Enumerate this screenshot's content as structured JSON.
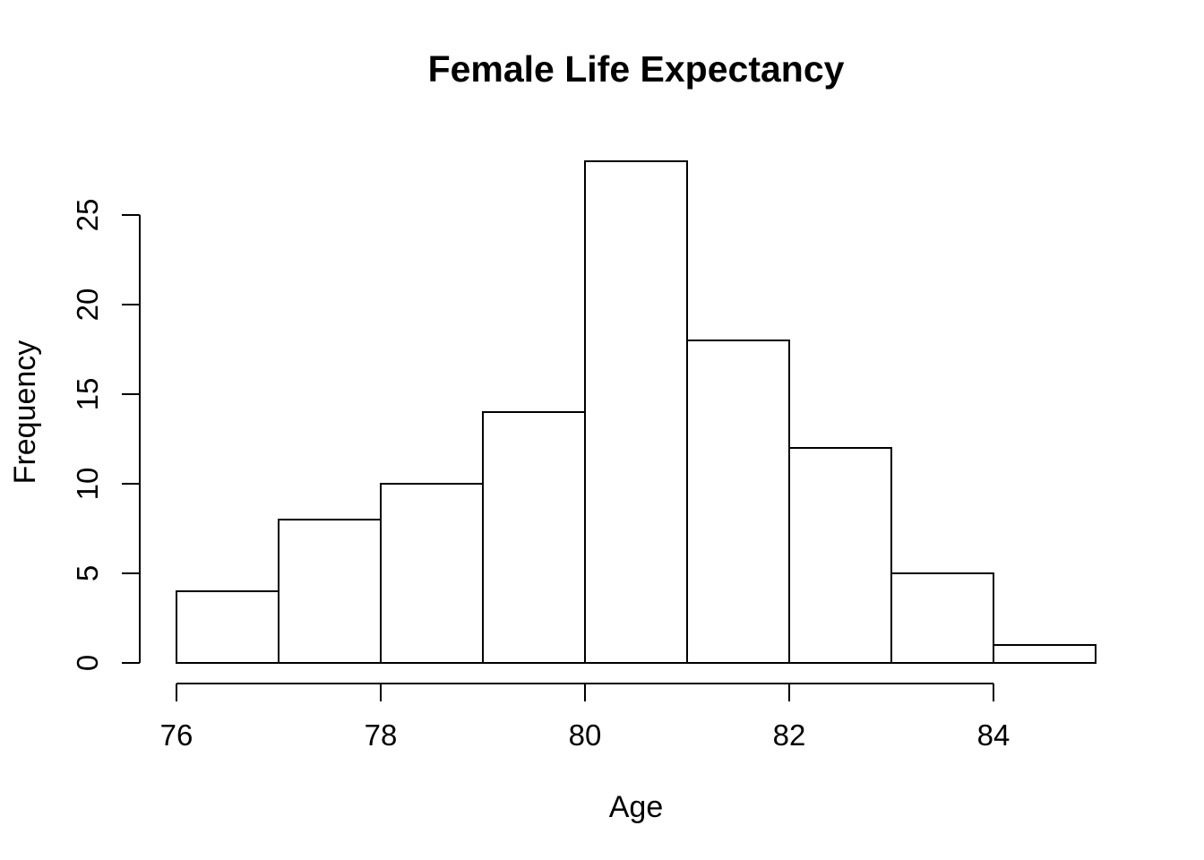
{
  "chart_data": {
    "type": "bar",
    "subtype": "histogram",
    "title": "Female Life Expectancy",
    "xlabel": "Age",
    "ylabel": "Frequency",
    "breaks": [
      76,
      77,
      78,
      79,
      80,
      81,
      82,
      83,
      84,
      85
    ],
    "counts": [
      4,
      8,
      10,
      14,
      28,
      18,
      12,
      5,
      1
    ],
    "x_ticks": [
      76,
      78,
      80,
      82,
      84
    ],
    "y_ticks": [
      0,
      5,
      10,
      15,
      20,
      25
    ],
    "xlim": [
      76,
      85
    ],
    "ylim": [
      0,
      28
    ],
    "grid": "off",
    "legend": "none",
    "bar_fill": "#ffffff",
    "line_color": "#000000",
    "background": "#ffffff"
  }
}
